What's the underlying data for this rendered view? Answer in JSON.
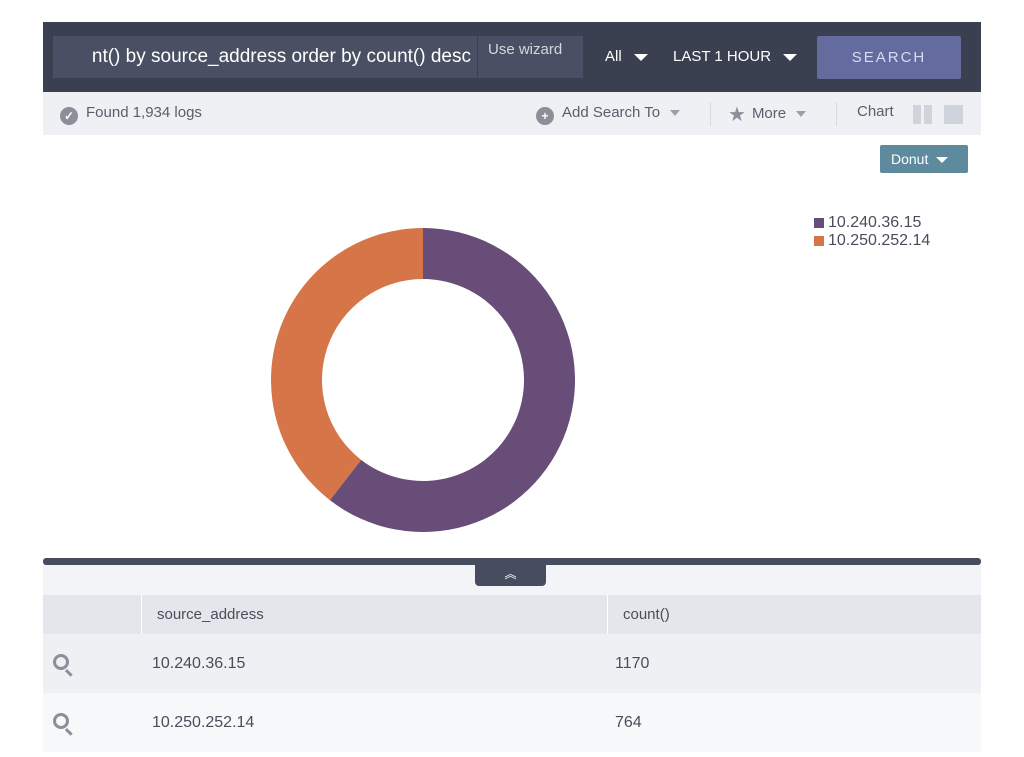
{
  "search": {
    "query": "nt() by source_address order by count() desc",
    "wizard_label": "Use wizard",
    "scope": "All",
    "time_range": "LAST 1 HOUR",
    "search_button": "SEARCH"
  },
  "toolbar": {
    "found_label": "Found 1,934 logs",
    "add_search_to": "Add Search To",
    "more": "More",
    "chart": "Chart"
  },
  "chart_type_button": "Donut",
  "chart_data": {
    "type": "pie",
    "variant": "donut",
    "categories": [
      "10.240.36.15",
      "10.250.252.14"
    ],
    "values": [
      1170,
      764
    ],
    "colors": [
      "#674d78",
      "#d67548"
    ],
    "legend_position": "top-right",
    "title": ""
  },
  "table": {
    "columns": [
      "source_address",
      "count()"
    ],
    "rows": [
      [
        "10.240.36.15",
        "1170"
      ],
      [
        "10.250.252.14",
        "764"
      ]
    ]
  },
  "icons": {
    "found": "check-circle-icon",
    "add": "plus-circle-icon",
    "more": "star-icon",
    "row_action": "magnifier-icon",
    "splitter": "double-chevron-up-icon"
  }
}
